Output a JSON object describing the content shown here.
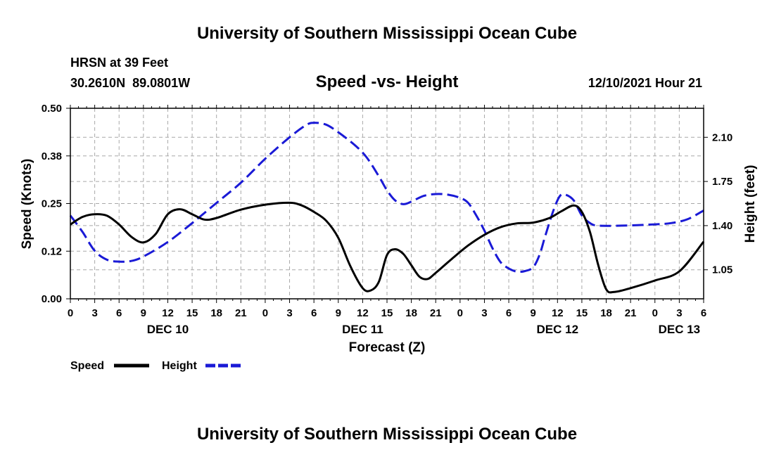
{
  "chart_data": {
    "type": "line",
    "title": "University of Southern Mississippi Ocean Cube",
    "footer_title": "University of Southern Mississippi Ocean Cube",
    "station": "HRSN at 39 Feet",
    "coordinates": "30.2610N  89.0801W",
    "subtitle": "Speed -vs- Height",
    "datetime": "12/10/2021 Hour 21",
    "xlabel": "Forecast (Z)",
    "ylabel_left": "Speed (Knots)",
    "ylabel_right": "Height (feet)",
    "x_range_hours": [
      0,
      78
    ],
    "x_tick_step_hours": 3,
    "x_tick_labels": [
      "0",
      "3",
      "6",
      "9",
      "12",
      "15",
      "18",
      "21",
      "0",
      "3",
      "6",
      "9",
      "12",
      "15",
      "18",
      "21",
      "0",
      "3",
      "6",
      "9",
      "12",
      "15",
      "18",
      "21",
      "0",
      "3",
      "6"
    ],
    "day_labels": [
      {
        "label": "DEC 10",
        "hour": 12
      },
      {
        "label": "DEC 11",
        "hour": 36
      },
      {
        "label": "DEC 12",
        "hour": 60
      },
      {
        "label": "DEC 13",
        "hour": 75
      }
    ],
    "left_axis": {
      "min": 0,
      "max": 0.5,
      "ticks": [
        0.0,
        0.125,
        0.25,
        0.375,
        0.5
      ],
      "tick_labels": [
        "0.00",
        "0.12",
        "0.25",
        "0.38",
        "0.50"
      ]
    },
    "right_axis": {
      "min": 0.82,
      "max": 2.33,
      "ticks": [
        1.05,
        1.4,
        1.75,
        2.1
      ],
      "tick_labels": [
        "1.05",
        "1.40",
        "1.75",
        "2.10"
      ]
    },
    "legend": [
      {
        "name": "Speed",
        "color": "#000000",
        "dashed": false
      },
      {
        "name": "Height",
        "color": "#1a1ad6",
        "dashed": true
      }
    ],
    "series": [
      {
        "name": "Speed",
        "axis": "left",
        "color": "#000000",
        "points": [
          [
            0,
            0.195
          ],
          [
            1.5,
            0.215
          ],
          [
            3,
            0.222
          ],
          [
            4.5,
            0.218
          ],
          [
            6,
            0.195
          ],
          [
            7.5,
            0.163
          ],
          [
            9,
            0.148
          ],
          [
            10.5,
            0.17
          ],
          [
            12,
            0.222
          ],
          [
            13.5,
            0.235
          ],
          [
            15,
            0.222
          ],
          [
            16.5,
            0.208
          ],
          [
            18,
            0.212
          ],
          [
            21,
            0.234
          ],
          [
            24,
            0.247
          ],
          [
            27,
            0.252
          ],
          [
            28.5,
            0.245
          ],
          [
            30,
            0.228
          ],
          [
            31.5,
            0.205
          ],
          [
            33,
            0.16
          ],
          [
            34.5,
            0.085
          ],
          [
            36,
            0.028
          ],
          [
            37,
            0.022
          ],
          [
            38,
            0.045
          ],
          [
            39,
            0.115
          ],
          [
            40,
            0.13
          ],
          [
            41,
            0.118
          ],
          [
            42,
            0.088
          ],
          [
            43,
            0.058
          ],
          [
            44,
            0.052
          ],
          [
            45,
            0.068
          ],
          [
            47,
            0.105
          ],
          [
            49,
            0.14
          ],
          [
            51,
            0.168
          ],
          [
            53,
            0.188
          ],
          [
            55,
            0.198
          ],
          [
            57,
            0.2
          ],
          [
            59,
            0.212
          ],
          [
            60.5,
            0.23
          ],
          [
            62,
            0.245
          ],
          [
            63,
            0.228
          ],
          [
            64,
            0.175
          ],
          [
            65,
            0.09
          ],
          [
            66,
            0.025
          ],
          [
            67,
            0.018
          ],
          [
            69,
            0.028
          ],
          [
            72,
            0.048
          ],
          [
            75,
            0.072
          ],
          [
            78,
            0.15
          ]
        ]
      },
      {
        "name": "Height",
        "axis": "right",
        "color": "#1a1ad6",
        "points": [
          [
            0,
            1.48
          ],
          [
            1.5,
            1.35
          ],
          [
            3,
            1.2
          ],
          [
            4.5,
            1.13
          ],
          [
            6,
            1.115
          ],
          [
            7.5,
            1.12
          ],
          [
            9,
            1.155
          ],
          [
            12,
            1.27
          ],
          [
            15,
            1.42
          ],
          [
            18,
            1.58
          ],
          [
            21,
            1.74
          ],
          [
            24,
            1.93
          ],
          [
            27,
            2.1
          ],
          [
            29,
            2.195
          ],
          [
            30,
            2.215
          ],
          [
            31.5,
            2.2
          ],
          [
            33,
            2.14
          ],
          [
            35,
            2.04
          ],
          [
            36.5,
            1.94
          ],
          [
            38,
            1.79
          ],
          [
            39,
            1.68
          ],
          [
            40,
            1.6
          ],
          [
            41,
            1.57
          ],
          [
            42,
            1.59
          ],
          [
            43.5,
            1.635
          ],
          [
            45,
            1.65
          ],
          [
            46.5,
            1.645
          ],
          [
            48,
            1.62
          ],
          [
            49,
            1.58
          ],
          [
            50,
            1.48
          ],
          [
            51,
            1.36
          ],
          [
            52,
            1.22
          ],
          [
            53,
            1.11
          ],
          [
            54,
            1.06
          ],
          [
            55,
            1.035
          ],
          [
            56,
            1.04
          ],
          [
            57,
            1.07
          ],
          [
            57.8,
            1.17
          ],
          [
            58.5,
            1.32
          ],
          [
            59.5,
            1.52
          ],
          [
            60.3,
            1.635
          ],
          [
            61,
            1.645
          ],
          [
            62,
            1.6
          ],
          [
            63,
            1.48
          ],
          [
            64,
            1.42
          ],
          [
            65,
            1.4
          ],
          [
            68,
            1.4
          ],
          [
            72,
            1.41
          ],
          [
            74,
            1.42
          ],
          [
            76,
            1.45
          ],
          [
            78,
            1.52
          ]
        ]
      }
    ]
  }
}
